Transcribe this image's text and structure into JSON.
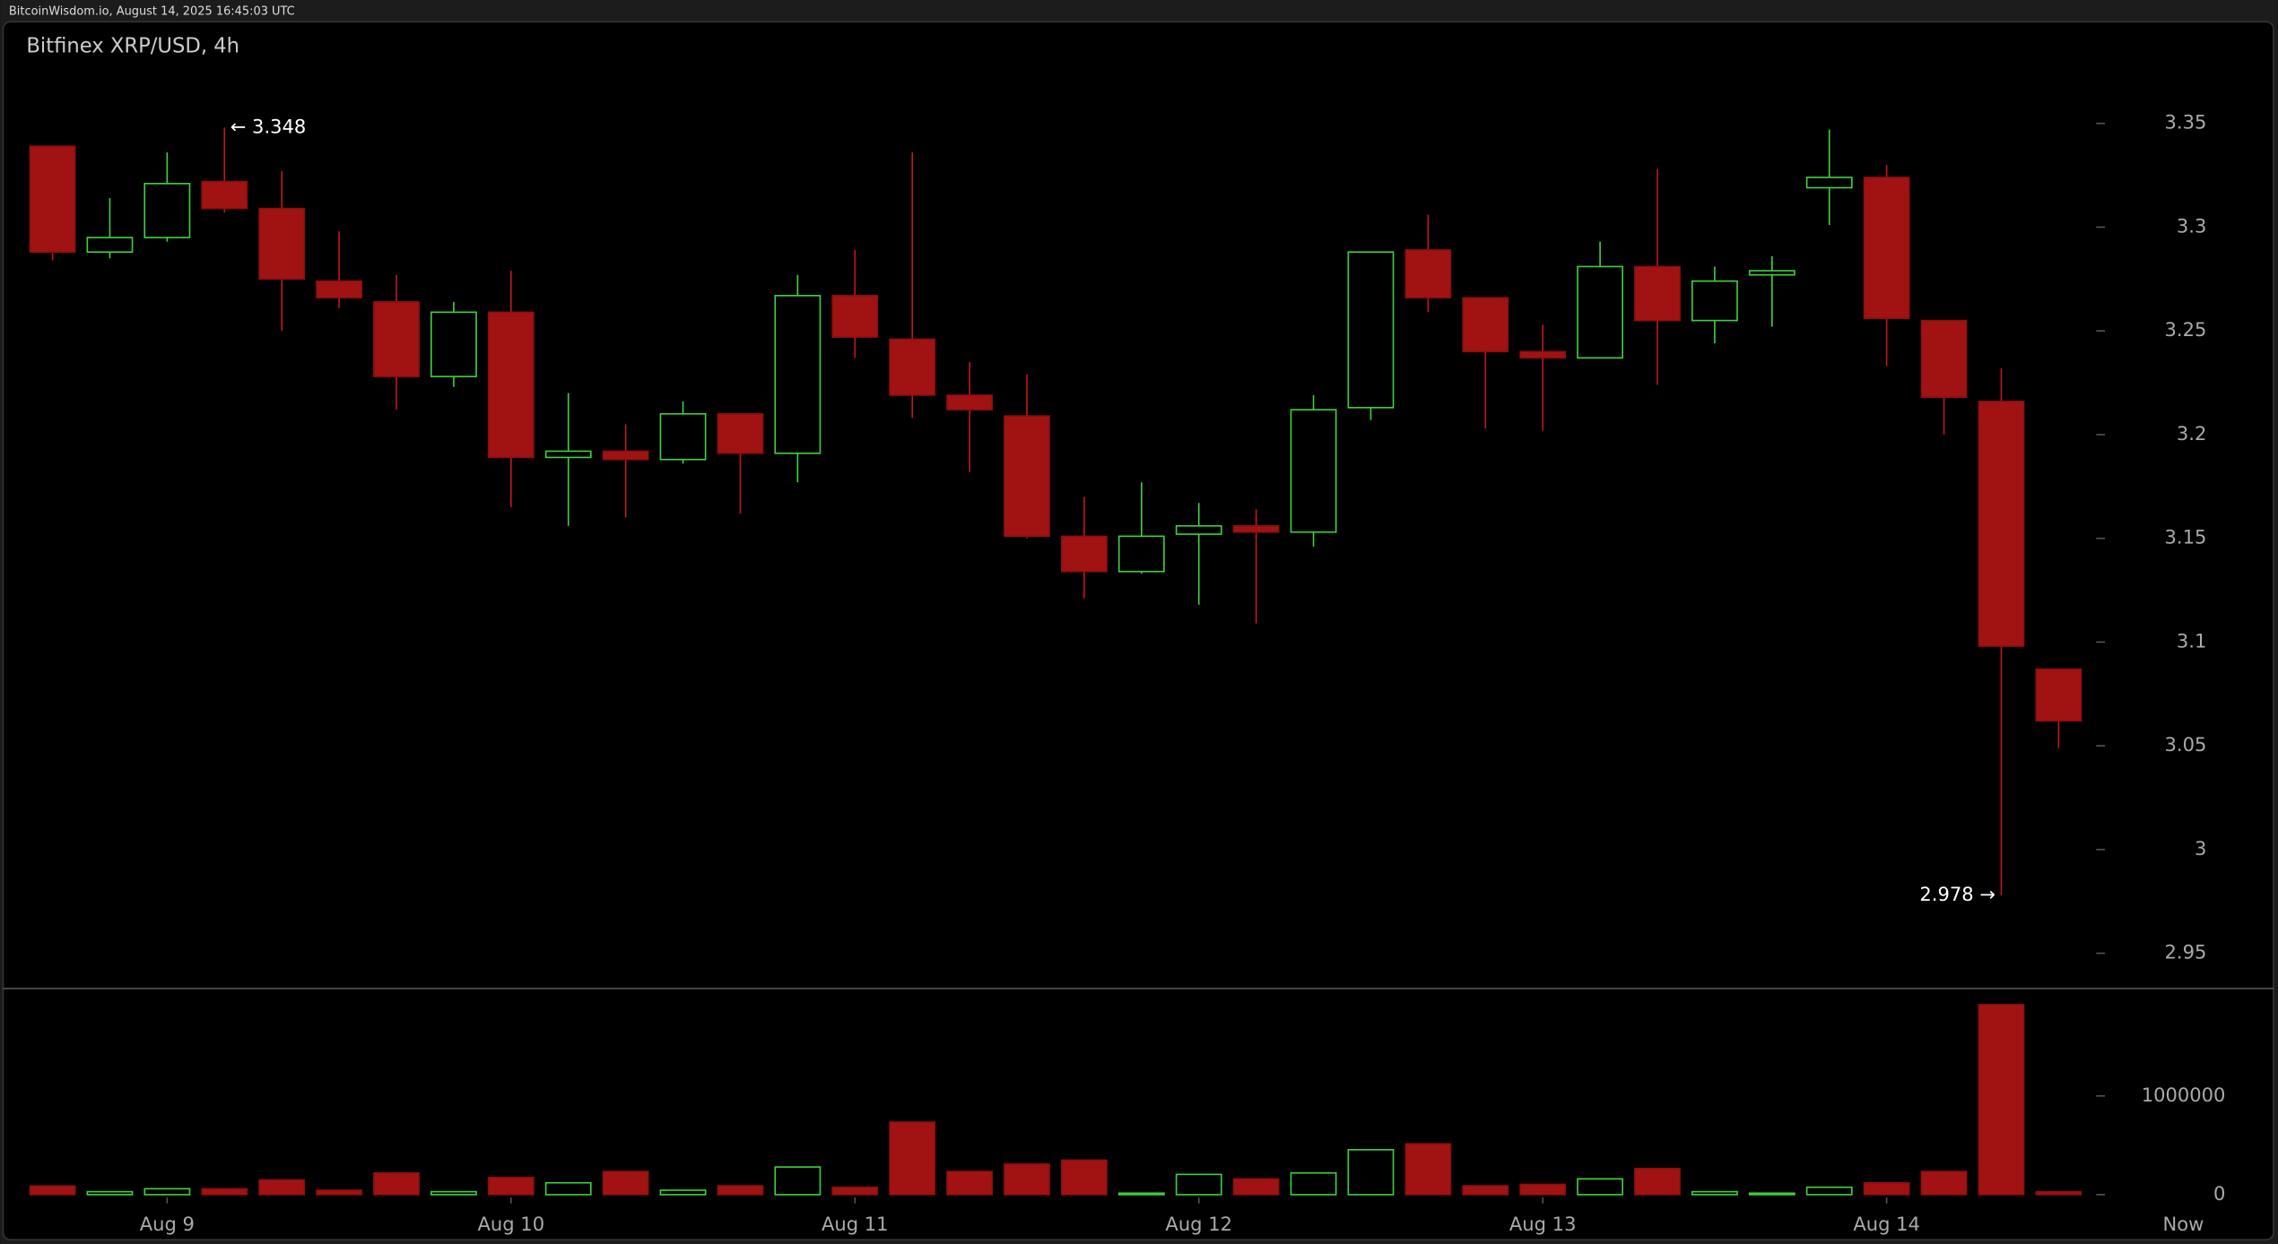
{
  "header": "BitcoinWisdom.io, August 14, 2025 16:45:03 UTC",
  "chart_data": {
    "type": "candlestick",
    "title": "Bitfinex XRP/USD, 4h",
    "categories": [
      null,
      null,
      "Aug 9",
      null,
      null,
      null,
      null,
      null,
      "Aug 10",
      null,
      null,
      null,
      null,
      null,
      "Aug 11",
      null,
      null,
      null,
      null,
      null,
      "Aug 12",
      null,
      null,
      null,
      null,
      null,
      "Aug 13",
      null,
      null,
      null,
      null,
      null,
      "Aug 14",
      null,
      null,
      null
    ],
    "now_label": "Now",
    "open": [
      3.339,
      3.288,
      3.295,
      3.322,
      3.309,
      3.274,
      3.264,
      3.228,
      3.259,
      3.189,
      3.192,
      3.188,
      3.21,
      3.191,
      3.267,
      3.246,
      3.219,
      3.209,
      3.151,
      3.134,
      3.152,
      3.156,
      3.153,
      3.213,
      3.289,
      3.266,
      3.24,
      3.237,
      3.281,
      3.255,
      3.277,
      3.319,
      3.324,
      3.255,
      3.216,
      3.087
    ],
    "high": [
      3.339,
      3.314,
      3.336,
      3.348,
      3.327,
      3.298,
      3.277,
      3.264,
      3.279,
      3.22,
      3.205,
      3.216,
      3.21,
      3.277,
      3.289,
      3.336,
      3.235,
      3.229,
      3.17,
      3.177,
      3.167,
      3.164,
      3.219,
      3.288,
      3.306,
      3.266,
      3.253,
      3.293,
      3.328,
      3.281,
      3.286,
      3.347,
      3.33,
      3.255,
      3.232,
      3.087
    ],
    "low": [
      3.284,
      3.285,
      3.293,
      3.307,
      3.25,
      3.261,
      3.212,
      3.223,
      3.165,
      3.156,
      3.16,
      3.186,
      3.162,
      3.177,
      3.237,
      3.208,
      3.182,
      3.15,
      3.121,
      3.133,
      3.118,
      3.109,
      3.146,
      3.207,
      3.259,
      3.203,
      3.202,
      3.237,
      3.224,
      3.244,
      3.252,
      3.301,
      3.233,
      3.2,
      2.978,
      3.049
    ],
    "close": [
      3.288,
      3.295,
      3.321,
      3.309,
      3.275,
      3.266,
      3.228,
      3.259,
      3.189,
      3.192,
      3.188,
      3.21,
      3.191,
      3.267,
      3.247,
      3.219,
      3.212,
      3.151,
      3.134,
      3.151,
      3.156,
      3.153,
      3.212,
      3.288,
      3.266,
      3.24,
      3.237,
      3.281,
      3.255,
      3.274,
      3.279,
      3.324,
      3.256,
      3.218,
      3.098,
      3.062
    ],
    "volume": [
      88000,
      30000,
      60000,
      60000,
      150000,
      45000,
      220000,
      30000,
      175000,
      120000,
      235000,
      45000,
      90000,
      280000,
      75000,
      735000,
      235000,
      310000,
      350000,
      15000,
      205000,
      160000,
      220000,
      455000,
      515000,
      90000,
      105000,
      160000,
      265000,
      30000,
      15000,
      75000,
      120000,
      235000,
      1925000,
      30000
    ],
    "up_color": "#3fd13f",
    "down_color": "#a11313",
    "ylim": [
      2.933,
      3.399
    ],
    "yticks": [
      2.95,
      3,
      3.05,
      3.1,
      3.15,
      3.2,
      3.25,
      3.3,
      3.35
    ],
    "volume_ylim": [
      0,
      2088000
    ],
    "volume_ticks": [
      0,
      1000000
    ],
    "annotations": [
      {
        "label": "← 3.348",
        "value": 3.348
      },
      {
        "label": "2.978 →",
        "value": 2.978
      }
    ]
  }
}
